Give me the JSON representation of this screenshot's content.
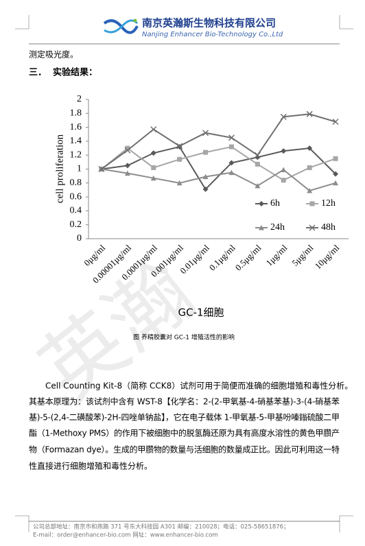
{
  "header": {
    "company": "南京英瀚斯生物科技有限公司",
    "company_en": "Nanjing Enhancer Bio-Technology Co.,Ltd"
  },
  "intro": "测定吸光度。",
  "section_heading": "三．  实验结果：",
  "watermark": "英瀚",
  "chart_data": {
    "type": "line",
    "title": "GC-1细胞",
    "y_label": "cell proliferation",
    "categories": [
      "0μg/ml",
      "0.00001μg/ml",
      "0.0001μg/ml",
      "0.001μg/ml",
      "0.01μg/ml",
      "0.1μg/ml",
      "0.5μg/ml",
      "1μg/ml",
      "5μg/ml",
      "10μg/ml"
    ],
    "series": [
      {
        "name": "6h",
        "color": "#595959",
        "marker": "diamond",
        "values": [
          1.0,
          1.05,
          1.23,
          1.32,
          0.71,
          1.09,
          1.17,
          1.26,
          1.3,
          0.93
        ]
      },
      {
        "name": "12h",
        "color": "#a6a6a6",
        "marker": "square",
        "values": [
          1.0,
          1.3,
          1.02,
          1.14,
          1.24,
          1.32,
          1.07,
          0.84,
          1.02,
          1.15
        ]
      },
      {
        "name": "24h",
        "color": "#8c8c8c",
        "marker": "triangle",
        "values": [
          1.0,
          0.94,
          0.87,
          0.8,
          0.89,
          0.95,
          0.76,
          0.99,
          0.69,
          0.8
        ]
      },
      {
        "name": "48h",
        "color": "#6e6e6e",
        "marker": "x",
        "values": [
          1.0,
          1.27,
          1.57,
          1.33,
          1.52,
          1.45,
          1.2,
          1.75,
          1.79,
          1.68
        ]
      }
    ],
    "ylim": [
      0,
      2
    ],
    "yticks": [
      0,
      0.2,
      0.4,
      0.6,
      0.8,
      1,
      1.2,
      1.4,
      1.6,
      1.8,
      2
    ],
    "grid": false,
    "legend": "lower right"
  },
  "caption": "图 养精胶囊对 GC-1 增殖活性的影响",
  "paragraph": [
    "Cell Counting Kit-8（简称 CCK8）试剂可用于简便而准确的细胞增殖和毒性分析。",
    "其基本原理为：该试剂中含有 WST-8【化学名：2-(2-甲氧基-4-硝基苯基)-3-(4-硝基苯",
    "基)-5-(2,4-二磺酸苯)-2H-四唑单钠盐】，它在电子载体 1-甲氧基-5-甲基吩嗪鎓硫酸二甲",
    "酯（1-Methoxy PMS）的作用下被细胞中的脱氢酶还原为具有高度水溶性的黄色甲臜产",
    "物（Formazan dye）。生成的甲臜物的数量与活细胞的数量成正比。因此可利用这一特",
    "性直接进行细胞增殖和毒性分析。"
  ],
  "footer": [
    "公司总部地址：南京市和燕路 371 号东大科技园 A301    邮编：210028；电话：025-58651876；",
    "E-mail：order@enhancer-bio.com 网址：www.enhancer-bio.com"
  ]
}
